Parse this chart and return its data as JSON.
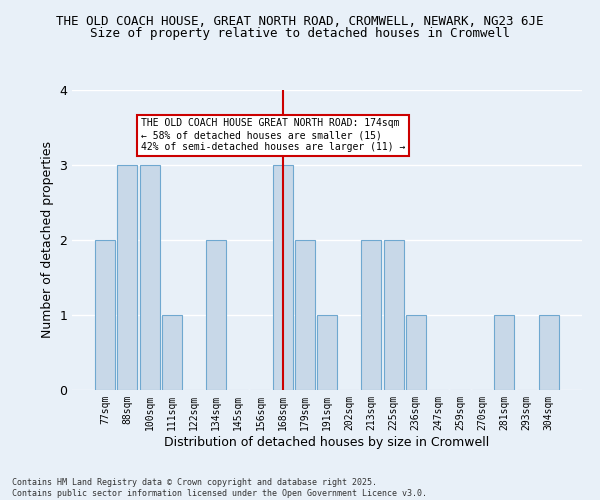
{
  "title_line1": "THE OLD COACH HOUSE, GREAT NORTH ROAD, CROMWELL, NEWARK, NG23 6JE",
  "title_line2": "Size of property relative to detached houses in Cromwell",
  "xlabel": "Distribution of detached houses by size in Cromwell",
  "ylabel": "Number of detached properties",
  "categories": [
    "77sqm",
    "88sqm",
    "100sqm",
    "111sqm",
    "122sqm",
    "134sqm",
    "145sqm",
    "156sqm",
    "168sqm",
    "179sqm",
    "191sqm",
    "202sqm",
    "213sqm",
    "225sqm",
    "236sqm",
    "247sqm",
    "259sqm",
    "270sqm",
    "281sqm",
    "293sqm",
    "304sqm"
  ],
  "values": [
    2,
    3,
    3,
    1,
    0,
    2,
    0,
    0,
    3,
    2,
    1,
    0,
    2,
    2,
    1,
    0,
    0,
    0,
    1,
    0,
    1
  ],
  "bar_color": "#c8d8e8",
  "bar_edge_color": "#6fa8d0",
  "highlight_index": 8,
  "highlight_line_color": "#cc0000",
  "ylim": [
    0,
    4
  ],
  "yticks": [
    0,
    1,
    2,
    3,
    4
  ],
  "annotation_text": "THE OLD COACH HOUSE GREAT NORTH ROAD: 174sqm\n← 58% of detached houses are smaller (15)\n42% of semi-detached houses are larger (11) →",
  "annotation_box_color": "#cc0000",
  "bg_color": "#e8f0f8",
  "grid_color": "#ffffff",
  "footer_text": "Contains HM Land Registry data © Crown copyright and database right 2025.\nContains public sector information licensed under the Open Government Licence v3.0.",
  "title_fontsize": 9,
  "subtitle_fontsize": 9,
  "annotation_fontsize": 7,
  "footer_fontsize": 6
}
